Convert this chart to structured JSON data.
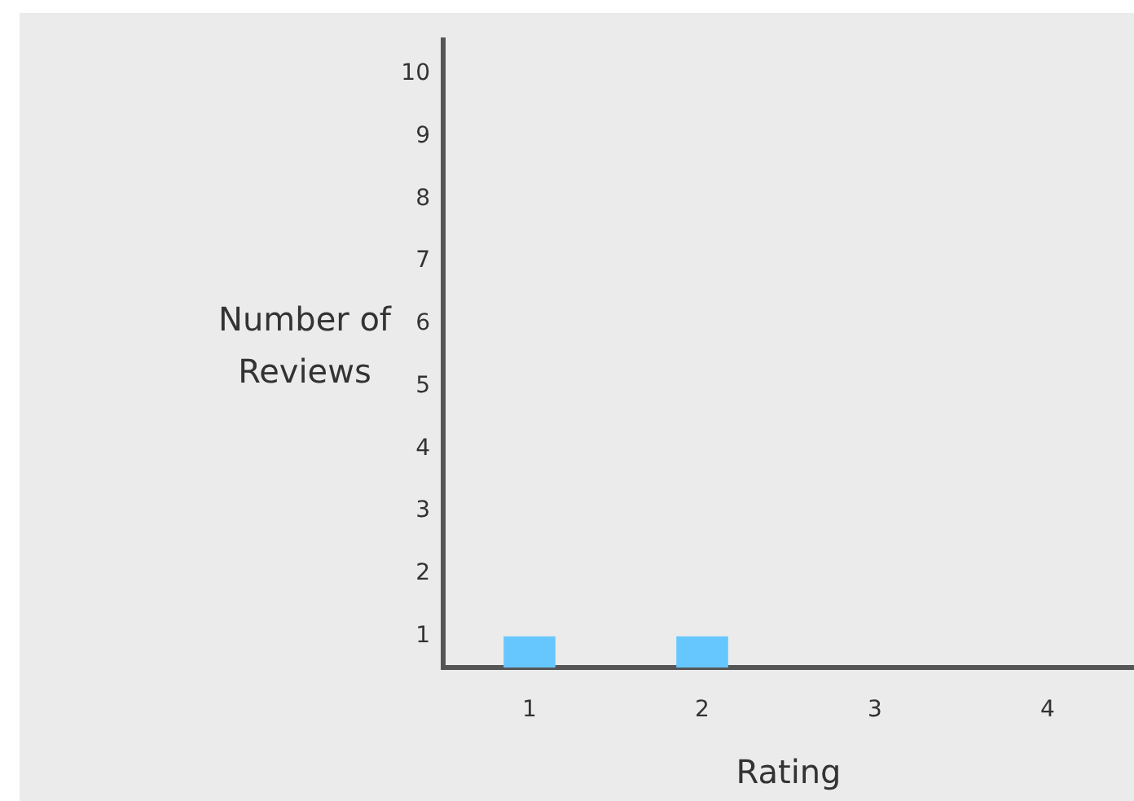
{
  "chart_data": {
    "type": "bar",
    "categories": [
      "1",
      "2",
      "3",
      "4"
    ],
    "values": [
      1,
      1,
      null,
      null
    ],
    "color": "#66c7ff",
    "xlabel": "Rating",
    "ylabel": "Number of Reviews",
    "ylim": [
      0.5,
      10.55
    ],
    "yticks": [
      1,
      2,
      3,
      4,
      5,
      6,
      7,
      8,
      9,
      10
    ],
    "grid": false,
    "legend": false
  }
}
